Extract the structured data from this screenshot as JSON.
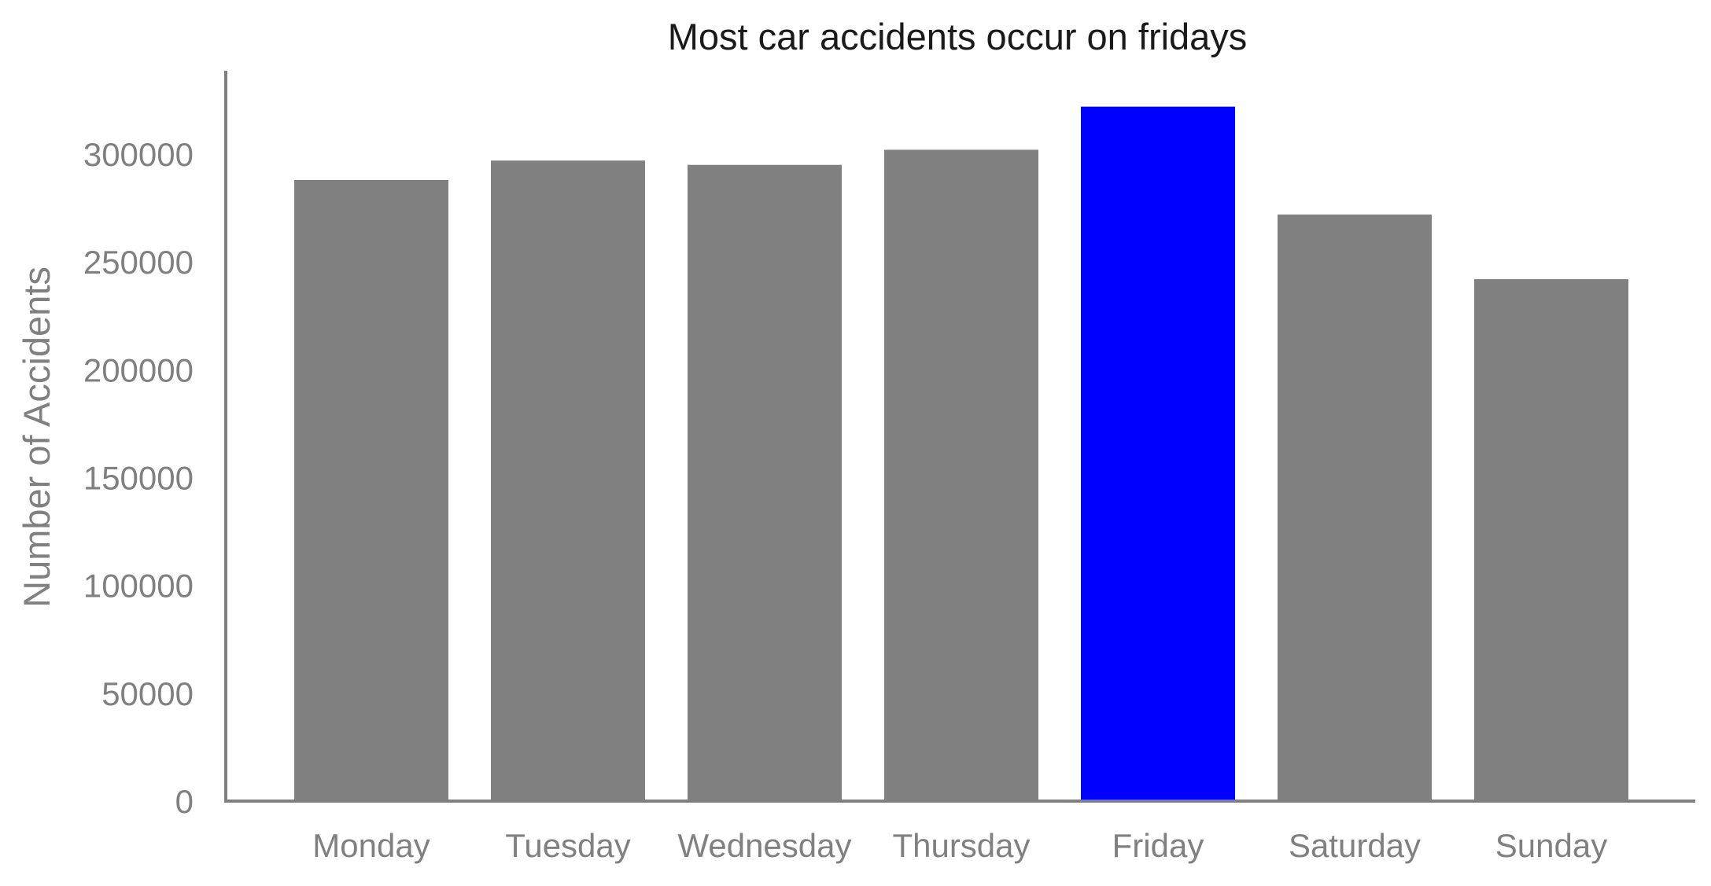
{
  "chart_data": {
    "type": "bar",
    "title": "Most car accidents occur on fridays",
    "xlabel": "",
    "ylabel": "Number of Accidents",
    "categories": [
      "Monday",
      "Tuesday",
      "Wednesday",
      "Thursday",
      "Friday",
      "Saturday",
      "Sunday"
    ],
    "values": [
      288000,
      297000,
      295000,
      302000,
      322000,
      272000,
      242000
    ],
    "ylim": [
      0,
      340000
    ],
    "yticks": [
      0,
      50000,
      100000,
      150000,
      200000,
      250000,
      300000
    ],
    "ytick_labels": [
      "0",
      "50000",
      "100000",
      "150000",
      "200000",
      "250000",
      "300000"
    ],
    "grid": false,
    "highlight_index": 4,
    "colors": {
      "bar": "#808080",
      "highlight": "#0000ff",
      "axis": "#808080"
    }
  }
}
